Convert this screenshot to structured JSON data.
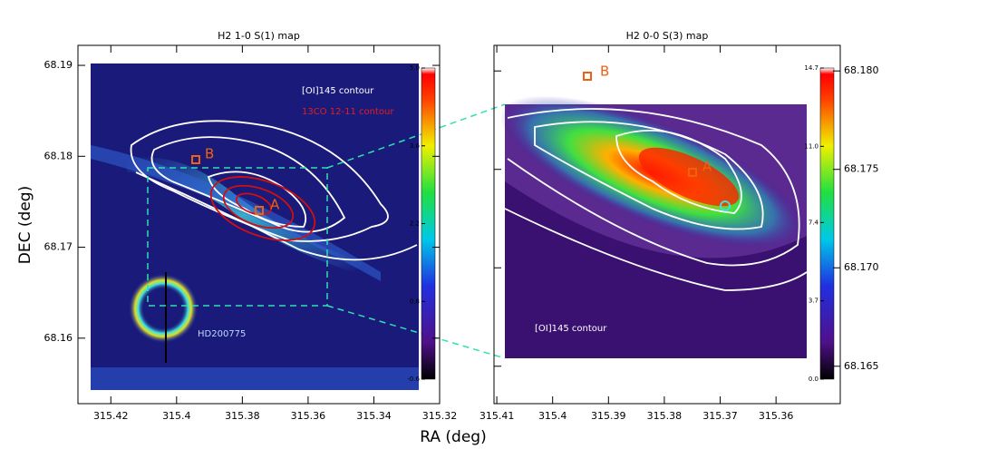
{
  "xlabel": "RA (deg)",
  "ylabel": "DEC (deg)",
  "chart_data": [
    {
      "type": "image",
      "title": "H2 1-0 S(1) map",
      "xlim": [
        315.43,
        315.32
      ],
      "xticks": [
        315.42,
        315.4,
        315.38,
        315.36,
        315.34,
        315.32
      ],
      "ylim": [
        68.1528,
        68.1922
      ],
      "yticks": [
        68.16,
        68.17,
        68.18,
        68.19
      ],
      "colorbar": {
        "lim": [
          -0.6,
          5.0
        ],
        "ticks": [
          {
            "value": 5,
            "label": "5.0"
          },
          3.6,
          2.2,
          0.8,
          -0.6
        ]
      },
      "annotations": [
        "[OI]145 contour",
        "13CO 12-11 contour",
        "HD200775",
        "A",
        "B"
      ]
    },
    {
      "type": "image",
      "title": "H2 0-0 S(3) map",
      "xlim": [
        315.4105,
        315.3485
      ],
      "xticks": [
        315.41,
        315.4,
        315.39,
        315.38,
        315.37,
        315.36
      ],
      "ylim": [
        68.1631,
        68.1813
      ],
      "yticks": [
        {
          "value": 68.18,
          "label": "68.180"
        },
        68.175,
        {
          "value": 68.17,
          "label": "68.170"
        },
        68.165
      ],
      "colorbar": {
        "lim": [
          0,
          14.7
        ],
        "ticks": [
          14.7,
          {
            "value": 11,
            "label": "11.0"
          },
          7.4,
          3.7,
          {
            "value": 0,
            "label": "0.0"
          }
        ]
      },
      "annotations": [
        "[OI]145 contour",
        "A",
        "B"
      ]
    }
  ]
}
